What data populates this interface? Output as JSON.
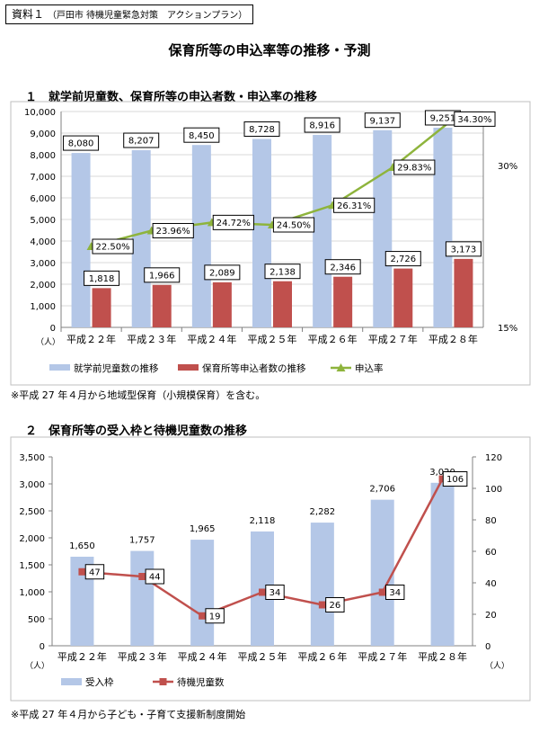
{
  "source_tag": {
    "label": "資料１",
    "detail": "（戸田市 待機児童緊急対策　アクションプラン）"
  },
  "title": "保育所等の申込率等の推移・予測",
  "section1": {
    "title": "１　就学前児童数、保育所等の申込者数・申込率の推移"
  },
  "section2": {
    "title": "２　保育所等の受入枠と待機児童数の推移"
  },
  "note1": "※平成 27 年４月から地域型保育（小規模保育）を含む。",
  "note2": "※平成 27 年４月から子ども・子育て支援新制度開始",
  "colors": {
    "blue": "#b4c7e7",
    "red": "#c0504d",
    "green": "#8eb43c",
    "axis": "#808080",
    "grid": "#d9d9d9"
  },
  "chart_data": [
    {
      "type": "bar+line",
      "title": "就学前児童数、保育所等の申込者数・申込率の推移",
      "categories": [
        "平成２２年",
        "平成２３年",
        "平成２４年",
        "平成２５年",
        "平成２６年",
        "平成２７年",
        "平成２８年"
      ],
      "series": [
        {
          "name": "就学前児童数の推移",
          "kind": "bar",
          "axis": "left",
          "values": [
            8080,
            8207,
            8450,
            8728,
            8916,
            9137,
            9251
          ],
          "labels": [
            "8,080",
            "8,207",
            "8,450",
            "8,728",
            "8,916",
            "9,137",
            "9,251"
          ]
        },
        {
          "name": "保育所等申込者数の推移",
          "kind": "bar",
          "axis": "left",
          "values": [
            1818,
            1966,
            2089,
            2138,
            2346,
            2726,
            3173
          ],
          "labels": [
            "1,818",
            "1,966",
            "2,089",
            "2,138",
            "2,346",
            "2,726",
            "3,173"
          ]
        },
        {
          "name": "申込率",
          "kind": "line",
          "axis": "right",
          "values": [
            22.5,
            23.96,
            24.72,
            24.5,
            26.31,
            29.83,
            34.3
          ],
          "labels": [
            "22.50%",
            "23.96%",
            "24.72%",
            "24.50%",
            "26.31%",
            "29.83%",
            "34.30%"
          ]
        }
      ],
      "ylim": [
        0,
        10000
      ],
      "yticks": [
        0,
        1000,
        2000,
        3000,
        4000,
        5000,
        6000,
        7000,
        8000,
        9000,
        10000
      ],
      "ytick_labels": [
        "0",
        "1,000",
        "2,000",
        "3,000",
        "4,000",
        "5,000",
        "6,000",
        "7,000",
        "8,000",
        "9,000",
        "10,000"
      ],
      "y2lim": [
        15,
        35
      ],
      "y2ticks": [
        15,
        30
      ],
      "y2tick_labels": [
        "15%",
        "30%"
      ],
      "y_unit": "（人）",
      "legend_position": "bottom"
    },
    {
      "type": "bar+line",
      "title": "保育所等の受入枠と待機児童数の推移",
      "categories": [
        "平成２２年",
        "平成２３年",
        "平成２４年",
        "平成２５年",
        "平成２６年",
        "平成２７年",
        "平成２８年"
      ],
      "series": [
        {
          "name": "受入枠",
          "kind": "bar",
          "axis": "left",
          "values": [
            1650,
            1757,
            1965,
            2118,
            2282,
            2706,
            3020
          ],
          "labels": [
            "1,650",
            "1,757",
            "1,965",
            "2,118",
            "2,282",
            "2,706",
            "3,020"
          ]
        },
        {
          "name": "待機児童数",
          "kind": "line",
          "axis": "right",
          "values": [
            47,
            44,
            19,
            34,
            26,
            34,
            106
          ],
          "labels": [
            "47",
            "44",
            "19",
            "34",
            "26",
            "34",
            "106"
          ]
        }
      ],
      "ylim": [
        0,
        3500
      ],
      "yticks": [
        0,
        500,
        1000,
        1500,
        2000,
        2500,
        3000,
        3500
      ],
      "ytick_labels": [
        "0",
        "500",
        "1,000",
        "1,500",
        "2,000",
        "2,500",
        "3,000",
        "3,500"
      ],
      "y2lim": [
        0,
        120
      ],
      "y2ticks": [
        0,
        20,
        40,
        60,
        80,
        100,
        120
      ],
      "y2tick_labels": [
        "0",
        "20",
        "40",
        "60",
        "80",
        "100",
        "120"
      ],
      "y_unit": "（人）",
      "y2_unit": "（人）",
      "legend_position": "bottom"
    }
  ]
}
